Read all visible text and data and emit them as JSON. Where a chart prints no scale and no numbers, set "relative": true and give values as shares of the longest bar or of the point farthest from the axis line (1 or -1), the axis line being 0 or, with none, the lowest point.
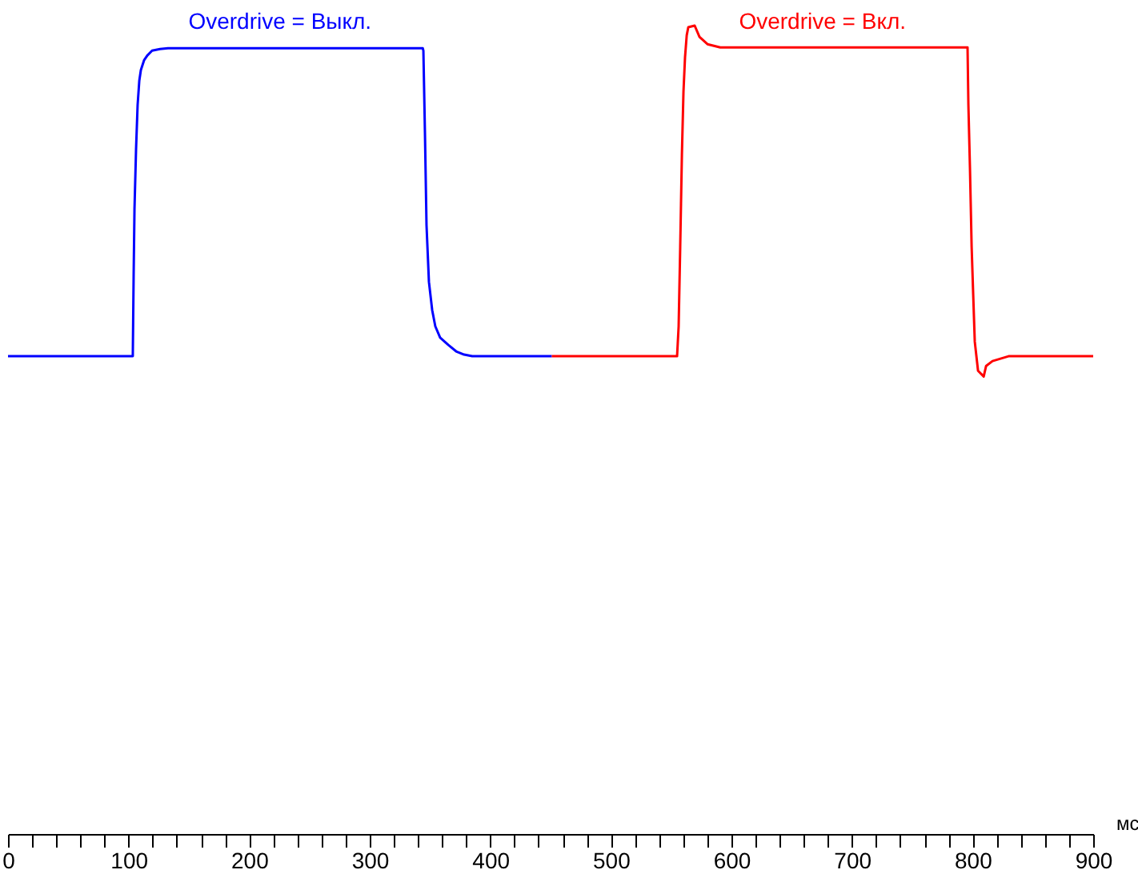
{
  "chart_data": {
    "type": "line",
    "xlabel": "мс",
    "relative": true,
    "grid": false,
    "legend": false,
    "line_style": "solid",
    "marker": "none",
    "xlim": [
      0,
      900
    ],
    "xticks": [
      0,
      {
        "value": 20,
        "label": null
      },
      {
        "value": 40,
        "label": null
      },
      {
        "value": 60,
        "label": null
      },
      {
        "value": 80,
        "label": null
      },
      100,
      {
        "value": 120,
        "label": null
      },
      {
        "value": 140,
        "label": null
      },
      {
        "value": 160,
        "label": null
      },
      {
        "value": 180,
        "label": null
      },
      200,
      {
        "value": 220,
        "label": null
      },
      {
        "value": 240,
        "label": null
      },
      {
        "value": 260,
        "label": null
      },
      {
        "value": 280,
        "label": null
      },
      300,
      {
        "value": 320,
        "label": null
      },
      {
        "value": 340,
        "label": null
      },
      {
        "value": 360,
        "label": null
      },
      {
        "value": 380,
        "label": null
      },
      400,
      {
        "value": 420,
        "label": null
      },
      {
        "value": 440,
        "label": null
      },
      {
        "value": 460,
        "label": null
      },
      {
        "value": 480,
        "label": null
      },
      500,
      {
        "value": 520,
        "label": null
      },
      {
        "value": 540,
        "label": null
      },
      {
        "value": 560,
        "label": null
      },
      {
        "value": 580,
        "label": null
      },
      600,
      {
        "value": 620,
        "label": null
      },
      {
        "value": 640,
        "label": null
      },
      {
        "value": 660,
        "label": null
      },
      {
        "value": 680,
        "label": null
      },
      700,
      {
        "value": 720,
        "label": null
      },
      {
        "value": 740,
        "label": null
      },
      {
        "value": 760,
        "label": null
      },
      {
        "value": 780,
        "label": null
      },
      800,
      {
        "value": 820,
        "label": null
      },
      {
        "value": 840,
        "label": null
      },
      {
        "value": 860,
        "label": null
      },
      {
        "value": 880,
        "label": null
      },
      900
    ],
    "series": [
      {
        "name": "Overdrive = Выкл.",
        "color": "#0000ff",
        "x": [
          0,
          103.5,
          104.2,
          104.9,
          106.2,
          107.5,
          108.9,
          110.2,
          112.8,
          115.5,
          119.5,
          126.1,
          132.7,
          344,
          344.5,
          345.8,
          347.1,
          349.1,
          351.8,
          354.4,
          358.4,
          365.1,
          371.7,
          378.3,
          385,
          451
        ],
        "values": [
          0.591,
          0.591,
          0.691,
          0.773,
          0.847,
          0.902,
          0.932,
          0.945,
          0.957,
          0.963,
          0.969,
          0.971,
          0.972,
          0.972,
          0.969,
          0.867,
          0.753,
          0.683,
          0.648,
          0.628,
          0.614,
          0.605,
          0.597,
          0.593,
          0.591,
          0.591
        ]
      },
      {
        "name": "Overdrive = Вкл.",
        "color": "#ff0000",
        "x": [
          451,
          554.9,
          556.2,
          557.5,
          558.9,
          560.2,
          561.5,
          562.9,
          564.2,
          569.5,
          573.5,
          580.1,
          590.7,
          795.8,
          796.5,
          797.8,
          799.2,
          800.5,
          801.8,
          804.5,
          809.2,
          811.2,
          816.5,
          829.8,
          900
        ],
        "values": [
          0.591,
          0.591,
          0.628,
          0.726,
          0.84,
          0.918,
          0.961,
          0.988,
          0.998,
          1.0,
          0.986,
          0.977,
          0.973,
          0.973,
          0.902,
          0.824,
          0.726,
          0.667,
          0.609,
          0.573,
          0.566,
          0.579,
          0.585,
          0.591,
          0.591
        ]
      }
    ]
  }
}
